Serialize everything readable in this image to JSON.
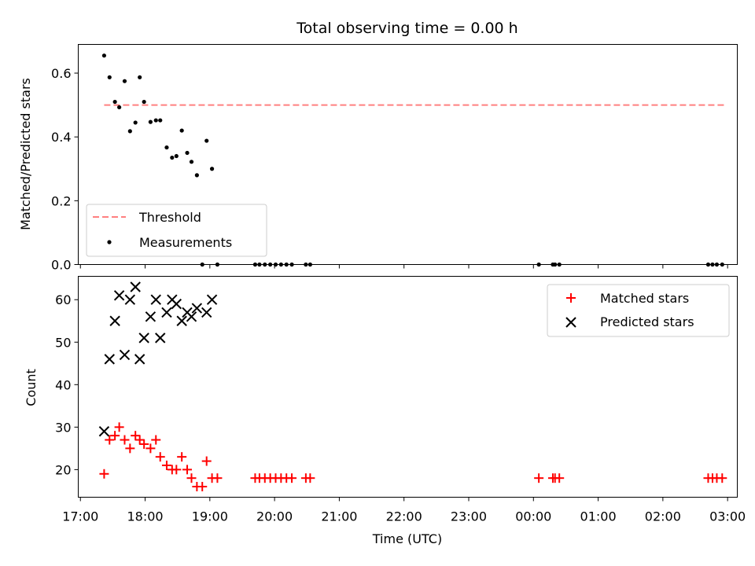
{
  "chart_data": [
    {
      "type": "scatter",
      "title": "Total observing time = 0.00 h",
      "ylabel": "Matched/Predicted stars",
      "ylim": [
        0,
        0.69
      ],
      "xlim": [
        "16:58",
        "03:09"
      ],
      "yticks": [
        0.0,
        0.2,
        0.4,
        0.6
      ],
      "ytick_labels": [
        "0.0",
        "0.2",
        "0.4",
        "0.6"
      ],
      "legend_position": "lower-left",
      "threshold": {
        "name": "Threshold",
        "value": 0.5,
        "x_start": "17:22",
        "x_end": "02:59",
        "color": "#ff8080"
      },
      "series": [
        {
          "name": "Measurements",
          "color": "#000000",
          "points": [
            [
              "17:22",
              0.655
            ],
            [
              "17:27",
              0.587
            ],
            [
              "17:32",
              0.51
            ],
            [
              "17:36",
              0.493
            ],
            [
              "17:41",
              0.575
            ],
            [
              "17:46",
              0.418
            ],
            [
              "17:51",
              0.445
            ],
            [
              "17:55",
              0.587
            ],
            [
              "17:59",
              0.51
            ],
            [
              "18:05",
              0.447
            ],
            [
              "18:10",
              0.452
            ],
            [
              "18:14",
              0.452
            ],
            [
              "18:20",
              0.367
            ],
            [
              "18:25",
              0.335
            ],
            [
              "18:29",
              0.34
            ],
            [
              "18:34",
              0.42
            ],
            [
              "18:39",
              0.35
            ],
            [
              "18:43",
              0.322
            ],
            [
              "18:48",
              0.28
            ],
            [
              "18:53",
              0.0
            ],
            [
              "18:57",
              0.388
            ],
            [
              "19:02",
              0.3
            ],
            [
              "19:07",
              0.0
            ],
            [
              "19:42",
              0.0
            ],
            [
              "19:46",
              0.0
            ],
            [
              "19:51",
              0.0
            ],
            [
              "19:56",
              0.0
            ],
            [
              "20:01",
              0.0
            ],
            [
              "20:06",
              0.0
            ],
            [
              "20:11",
              0.0
            ],
            [
              "20:16",
              0.0
            ],
            [
              "20:29",
              0.0
            ],
            [
              "20:33",
              0.0
            ],
            [
              "00:05",
              0.0
            ],
            [
              "00:18",
              0.0
            ],
            [
              "00:20",
              0.0
            ],
            [
              "00:24",
              0.0
            ],
            [
              "02:42",
              0.0
            ],
            [
              "02:46",
              0.0
            ],
            [
              "02:50",
              0.0
            ],
            [
              "02:55",
              0.0
            ]
          ]
        }
      ]
    },
    {
      "type": "scatter",
      "xlabel": "Time (UTC)",
      "ylabel": "Count",
      "ylim": [
        13.5,
        65.5
      ],
      "xlim": [
        "16:58",
        "03:09"
      ],
      "xticks": [
        "17:00",
        "18:00",
        "19:00",
        "20:00",
        "21:00",
        "22:00",
        "23:00",
        "00:00",
        "01:00",
        "02:00",
        "03:00"
      ],
      "yticks": [
        20,
        30,
        40,
        50,
        60
      ],
      "legend_position": "upper-right",
      "series": [
        {
          "name": "Matched stars",
          "marker": "+",
          "color": "#ff0000",
          "points": [
            [
              "17:22",
              19
            ],
            [
              "17:27",
              27
            ],
            [
              "17:32",
              28
            ],
            [
              "17:36",
              30
            ],
            [
              "17:41",
              27
            ],
            [
              "17:46",
              25
            ],
            [
              "17:51",
              28
            ],
            [
              "17:55",
              27
            ],
            [
              "17:59",
              26
            ],
            [
              "18:05",
              25
            ],
            [
              "18:10",
              27
            ],
            [
              "18:14",
              23
            ],
            [
              "18:20",
              21
            ],
            [
              "18:25",
              20
            ],
            [
              "18:29",
              20
            ],
            [
              "18:34",
              23
            ],
            [
              "18:39",
              20
            ],
            [
              "18:43",
              18
            ],
            [
              "18:48",
              16
            ],
            [
              "18:53",
              16
            ],
            [
              "18:57",
              22
            ],
            [
              "19:02",
              18
            ],
            [
              "19:07",
              18
            ],
            [
              "19:42",
              18
            ],
            [
              "19:46",
              18
            ],
            [
              "19:51",
              18
            ],
            [
              "19:56",
              18
            ],
            [
              "20:01",
              18
            ],
            [
              "20:06",
              18
            ],
            [
              "20:11",
              18
            ],
            [
              "20:16",
              18
            ],
            [
              "20:29",
              18
            ],
            [
              "20:33",
              18
            ],
            [
              "00:05",
              18
            ],
            [
              "00:18",
              18
            ],
            [
              "00:20",
              18
            ],
            [
              "00:24",
              18
            ],
            [
              "02:42",
              18
            ],
            [
              "02:46",
              18
            ],
            [
              "02:50",
              18
            ],
            [
              "02:55",
              18
            ]
          ]
        },
        {
          "name": "Predicted stars",
          "marker": "x",
          "color": "#000000",
          "points": [
            [
              "17:22",
              29
            ],
            [
              "17:27",
              46
            ],
            [
              "17:32",
              55
            ],
            [
              "17:36",
              61
            ],
            [
              "17:41",
              47
            ],
            [
              "17:46",
              60
            ],
            [
              "17:51",
              63
            ],
            [
              "17:55",
              46
            ],
            [
              "17:59",
              51
            ],
            [
              "18:05",
              56
            ],
            [
              "18:10",
              60
            ],
            [
              "18:14",
              51
            ],
            [
              "18:20",
              57
            ],
            [
              "18:25",
              60
            ],
            [
              "18:29",
              59
            ],
            [
              "18:34",
              55
            ],
            [
              "18:39",
              57
            ],
            [
              "18:43",
              56
            ],
            [
              "18:48",
              58
            ],
            [
              "18:57",
              57
            ],
            [
              "19:02",
              60
            ]
          ]
        }
      ]
    }
  ]
}
